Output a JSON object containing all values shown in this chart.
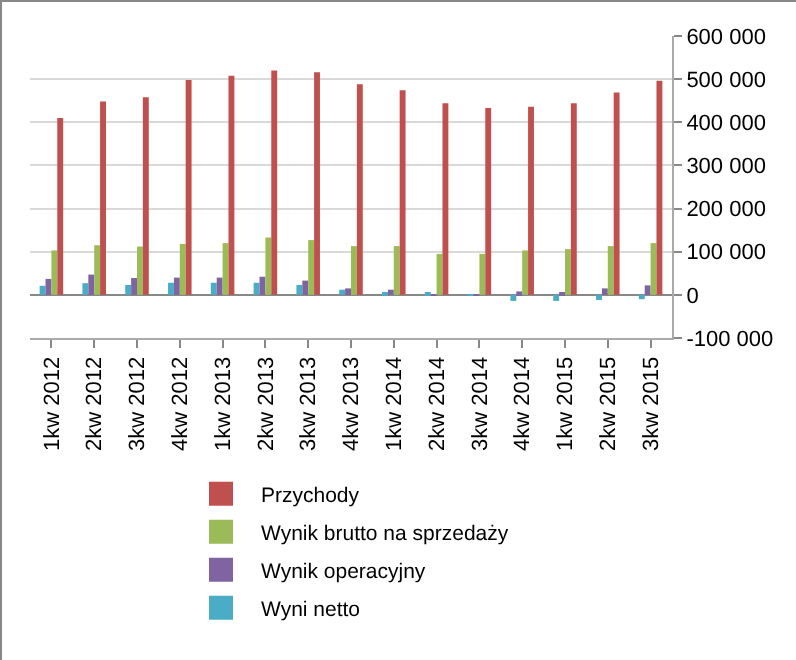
{
  "chart_data": {
    "type": "bar",
    "categories": [
      "1kw 2012",
      "2kw 2012",
      "3kw 2012",
      "4kw 2012",
      "1kw 2013",
      "2kw 2013",
      "3kw 2013",
      "4kw 2013",
      "1kw 2014",
      "2kw 2014",
      "3kw 2014",
      "4kw 2014",
      "1kw 2015",
      "2kw 2015",
      "3kw 2015"
    ],
    "series": [
      {
        "name": "Przychody",
        "color": "#c0504d",
        "values": [
          410000,
          448000,
          458000,
          498000,
          508000,
          520000,
          516000,
          488000,
          474000,
          444000,
          433000,
          436000,
          444000,
          469000,
          496000
        ]
      },
      {
        "name": "Wynik brutto na sprzedaży",
        "color": "#9bbb59",
        "values": [
          103000,
          115000,
          112000,
          118000,
          120000,
          133000,
          127000,
          113000,
          113000,
          95000,
          95000,
          103000,
          106000,
          113000,
          120000
        ]
      },
      {
        "name": "Wynik operacyjny",
        "color": "#8064a2",
        "values": [
          37000,
          47000,
          39000,
          40000,
          40000,
          42000,
          33000,
          15000,
          12000,
          2000,
          -2000,
          8000,
          6000,
          15000,
          22000
        ]
      },
      {
        "name": "Wyni netto",
        "color": "#4bacc6",
        "values": [
          21000,
          27000,
          23000,
          28000,
          28000,
          28000,
          23000,
          12000,
          6000,
          4000,
          -2000,
          -14000,
          -14000,
          -12000,
          -10000
        ]
      }
    ],
    "ylim": [
      -100000,
      600000
    ],
    "yticks": [
      {
        "value": -100000,
        "label": "-100 000"
      },
      0,
      {
        "value": 100000,
        "label": "100 000"
      },
      {
        "value": 200000,
        "label": "200 000"
      },
      {
        "value": 300000,
        "label": "300 000"
      },
      {
        "value": 400000,
        "label": "400 000"
      },
      {
        "value": 500000,
        "label": "500 000"
      },
      {
        "value": 600000,
        "label": "600 000"
      }
    ],
    "grid": "y",
    "legend": "bottom"
  }
}
